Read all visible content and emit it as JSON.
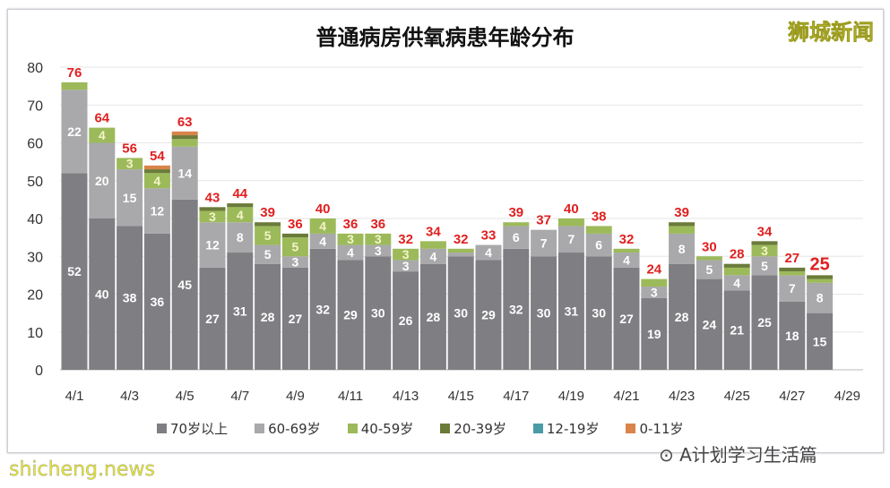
{
  "chart_data": {
    "type": "bar",
    "stacked": true,
    "title": "普通病房供氧病患年龄分布",
    "categories": [
      "4/1",
      "4/2",
      "4/3",
      "4/4",
      "4/5",
      "4/6",
      "4/7",
      "4/8",
      "4/9",
      "4/10",
      "4/11",
      "4/12",
      "4/13",
      "4/14",
      "4/15",
      "4/16",
      "4/17",
      "4/18",
      "4/19",
      "4/20",
      "4/21",
      "4/22",
      "4/23",
      "4/24",
      "4/25",
      "4/26",
      "4/27",
      "4/28",
      "4/29"
    ],
    "tick_labels": [
      "4/1",
      "4/3",
      "4/5",
      "4/7",
      "4/9",
      "4/11",
      "4/13",
      "4/15",
      "4/17",
      "4/19",
      "4/21",
      "4/23",
      "4/25",
      "4/27",
      "4/29"
    ],
    "ylim": [
      0,
      80
    ],
    "yticks": [
      0,
      10,
      20,
      30,
      40,
      50,
      60,
      70,
      80
    ],
    "grid": true,
    "legend_position": "bottom",
    "series": [
      {
        "name": "70岁以上",
        "color": "#7f7e82",
        "values": [
          52,
          40,
          38,
          36,
          45,
          27,
          31,
          28,
          27,
          32,
          29,
          30,
          26,
          28,
          30,
          29,
          32,
          30,
          31,
          30,
          27,
          19,
          28,
          24,
          21,
          25,
          18,
          15,
          null
        ]
      },
      {
        "name": "60-69岁",
        "color": "#a9a9ab",
        "values": [
          22,
          20,
          15,
          12,
          14,
          12,
          8,
          5,
          3,
          4,
          4,
          3,
          3,
          4,
          1,
          4,
          6,
          7,
          7,
          6,
          4,
          3,
          8,
          5,
          4,
          5,
          7,
          8,
          null
        ]
      },
      {
        "name": "40-59岁",
        "color": "#9cba5a",
        "values": [
          2,
          4,
          3,
          4,
          2,
          3,
          4,
          5,
          5,
          4,
          3,
          3,
          3,
          2,
          1,
          0,
          1,
          0,
          2,
          2,
          1,
          2,
          2,
          1,
          2,
          3,
          1,
          1,
          null
        ]
      },
      {
        "name": "20-39岁",
        "color": "#6b7b3a",
        "values": [
          0,
          0,
          0,
          1,
          1,
          1,
          1,
          1,
          1,
          0,
          0,
          0,
          0,
          0,
          0,
          0,
          0,
          0,
          0,
          0,
          0,
          0,
          1,
          0,
          1,
          1,
          1,
          1,
          null
        ]
      },
      {
        "name": "12-19岁",
        "color": "#4a9aa8",
        "values": [
          0,
          0,
          0,
          0,
          0,
          0,
          0,
          0,
          0,
          0,
          0,
          0,
          0,
          0,
          0,
          0,
          0,
          0,
          0,
          0,
          0,
          0,
          0,
          0,
          0,
          0,
          0,
          0,
          null
        ]
      },
      {
        "name": "0-11岁",
        "color": "#d9844a",
        "values": [
          0,
          0,
          0,
          1,
          1,
          0,
          0,
          0,
          0,
          0,
          0,
          0,
          0,
          0,
          0,
          0,
          0,
          0,
          0,
          0,
          0,
          0,
          0,
          0,
          0,
          0,
          0,
          0,
          null
        ]
      }
    ],
    "totals": [
      76,
      64,
      56,
      54,
      63,
      43,
      44,
      39,
      36,
      40,
      36,
      36,
      32,
      34,
      32,
      33,
      39,
      37,
      40,
      38,
      32,
      24,
      39,
      30,
      28,
      34,
      27,
      25,
      null
    ],
    "total_label_color": "#e02020"
  },
  "logo": "狮城新闻",
  "wechat_source": "A计划学习生活篇",
  "watermark": "shicheng.news"
}
